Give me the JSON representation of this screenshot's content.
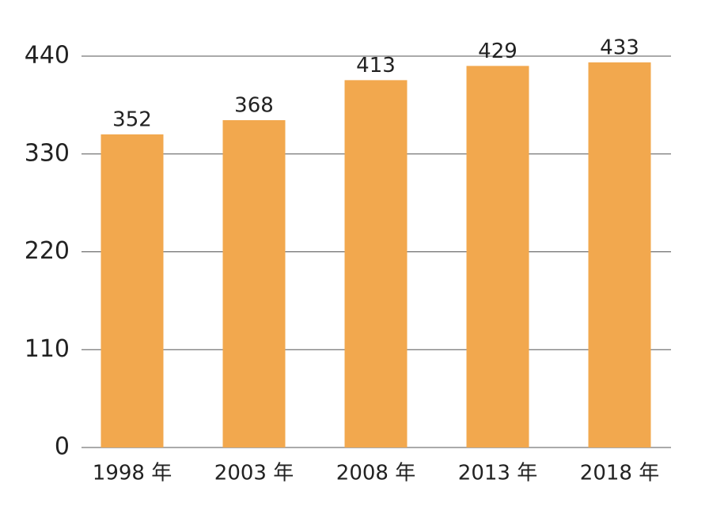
{
  "chart_data": {
    "type": "bar",
    "categories": [
      "1998 年",
      "2003 年",
      "2008 年",
      "2013 年",
      "2018 年"
    ],
    "values": [
      352,
      368,
      413,
      429,
      433
    ],
    "color": "#f2a84e",
    "ylim": [
      0,
      440
    ],
    "yticks": [
      0,
      110,
      220,
      330,
      440
    ],
    "grid": true
  }
}
